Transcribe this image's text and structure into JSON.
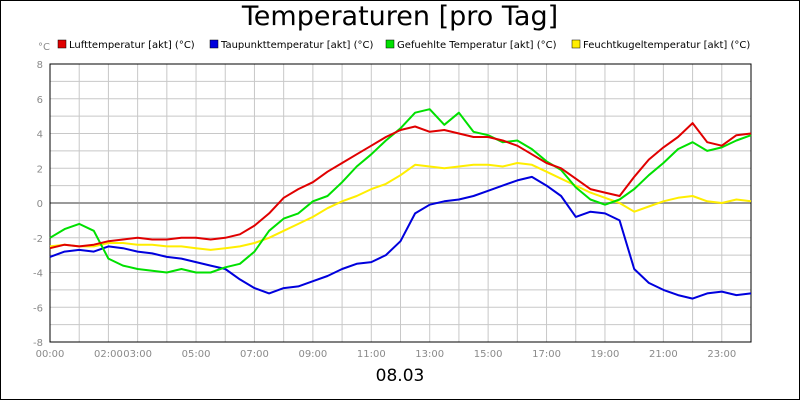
{
  "chart_data": {
    "type": "line",
    "title": "Temperaturen [pro Tag]",
    "date_label": "08.03",
    "y_unit": "°C",
    "ylim": [
      -8,
      8
    ],
    "y_ticks": [
      8,
      6,
      4,
      2,
      0,
      -2,
      -4,
      -6,
      -8
    ],
    "x_range_hours": [
      0,
      24
    ],
    "x_ticks": [
      {
        "hour": 0,
        "label": "00:00"
      },
      {
        "hour": 2,
        "label": "02:00"
      },
      {
        "hour": 3,
        "label": "03:00"
      },
      {
        "hour": 5,
        "label": "05:00"
      },
      {
        "hour": 7,
        "label": "07:00"
      },
      {
        "hour": 9,
        "label": "09:00"
      },
      {
        "hour": 11,
        "label": "11:00"
      },
      {
        "hour": 13,
        "label": "13:00"
      },
      {
        "hour": 15,
        "label": "15:00"
      },
      {
        "hour": 17,
        "label": "17:00"
      },
      {
        "hour": 19,
        "label": "19:00"
      },
      {
        "hour": 21,
        "label": "21:00"
      },
      {
        "hour": 23,
        "label": "23:00"
      }
    ],
    "grid": true,
    "legend_position": "top",
    "series": [
      {
        "name": "Lufttemperatur [akt] (°C)",
        "color": "#e00000",
        "x": [
          0,
          0.5,
          1,
          1.5,
          2,
          2.5,
          3,
          3.5,
          4,
          4.5,
          5,
          5.5,
          6,
          6.5,
          7,
          7.5,
          8,
          8.5,
          9,
          9.5,
          10,
          10.5,
          11,
          11.5,
          12,
          12.5,
          13,
          13.5,
          14,
          14.5,
          15,
          15.5,
          16,
          16.5,
          17,
          17.5,
          18,
          18.5,
          19,
          19.5,
          20,
          20.5,
          21,
          21.5,
          22,
          22.5,
          23,
          23.5,
          24
        ],
        "y": [
          -2.6,
          -2.4,
          -2.5,
          -2.4,
          -2.2,
          -2.1,
          -2.0,
          -2.1,
          -2.1,
          -2.0,
          -2.0,
          -2.1,
          -2.0,
          -1.8,
          -1.3,
          -0.6,
          0.3,
          0.8,
          1.2,
          1.8,
          2.3,
          2.8,
          3.3,
          3.8,
          4.2,
          4.4,
          4.1,
          4.2,
          4.0,
          3.8,
          3.8,
          3.6,
          3.3,
          2.8,
          2.3,
          2.0,
          1.4,
          0.8,
          0.6,
          0.4,
          1.5,
          2.5,
          3.2,
          3.8,
          4.6,
          3.5,
          3.3,
          3.9,
          4.0
        ]
      },
      {
        "name": "Taupunkttemperatur [akt] (°C)",
        "color": "#0000dd",
        "x": [
          0,
          0.5,
          1,
          1.5,
          2,
          2.5,
          3,
          3.5,
          4,
          4.5,
          5,
          5.5,
          6,
          6.5,
          7,
          7.5,
          8,
          8.5,
          9,
          9.5,
          10,
          10.5,
          11,
          11.5,
          12,
          12.5,
          13,
          13.5,
          14,
          14.5,
          15,
          15.5,
          16,
          16.5,
          17,
          17.5,
          18,
          18.5,
          19,
          19.5,
          20,
          20.5,
          21,
          21.5,
          22,
          22.5,
          23,
          23.5,
          24
        ],
        "y": [
          -3.1,
          -2.8,
          -2.7,
          -2.8,
          -2.5,
          -2.6,
          -2.8,
          -2.9,
          -3.1,
          -3.2,
          -3.4,
          -3.6,
          -3.8,
          -4.4,
          -4.9,
          -5.2,
          -4.9,
          -4.8,
          -4.5,
          -4.2,
          -3.8,
          -3.5,
          -3.4,
          -3.0,
          -2.2,
          -0.6,
          -0.1,
          0.1,
          0.2,
          0.4,
          0.7,
          1.0,
          1.3,
          1.5,
          1.0,
          0.4,
          -0.8,
          -0.5,
          -0.6,
          -1.0,
          -3.8,
          -4.6,
          -5.0,
          -5.3,
          -5.5,
          -5.2,
          -5.1,
          -5.3,
          -5.2
        ]
      },
      {
        "name": "Gefuehlte Temperatur [akt] (°C)",
        "color": "#00e000",
        "x": [
          0,
          0.5,
          1,
          1.5,
          2,
          2.5,
          3,
          3.5,
          4,
          4.5,
          5,
          5.5,
          6,
          6.5,
          7,
          7.5,
          8,
          8.5,
          9,
          9.5,
          10,
          10.5,
          11,
          11.5,
          12,
          12.5,
          13,
          13.5,
          14,
          14.5,
          15,
          15.5,
          16,
          16.5,
          17,
          17.5,
          18,
          18.5,
          19,
          19.5,
          20,
          20.5,
          21,
          21.5,
          22,
          22.5,
          23,
          23.5,
          24
        ],
        "y": [
          -2.0,
          -1.5,
          -1.2,
          -1.6,
          -3.2,
          -3.6,
          -3.8,
          -3.9,
          -4.0,
          -3.8,
          -4.0,
          -4.0,
          -3.7,
          -3.5,
          -2.8,
          -1.6,
          -0.9,
          -0.6,
          0.1,
          0.4,
          1.2,
          2.1,
          2.8,
          3.6,
          4.3,
          5.2,
          5.4,
          4.5,
          5.2,
          4.1,
          3.9,
          3.5,
          3.6,
          3.1,
          2.4,
          1.9,
          0.9,
          0.2,
          -0.1,
          0.2,
          0.8,
          1.6,
          2.3,
          3.1,
          3.5,
          3.0,
          3.2,
          3.6,
          3.9
        ]
      },
      {
        "name": "Feuchtkugeltemperatur [akt] (°C)",
        "color": "#ffee00",
        "x": [
          0,
          0.5,
          1,
          1.5,
          2,
          2.5,
          3,
          3.5,
          4,
          4.5,
          5,
          5.5,
          6,
          6.5,
          7,
          7.5,
          8,
          8.5,
          9,
          9.5,
          10,
          10.5,
          11,
          11.5,
          12,
          12.5,
          13,
          13.5,
          14,
          14.5,
          15,
          15.5,
          16,
          16.5,
          17,
          17.5,
          18,
          18.5,
          19,
          19.5,
          20,
          20.5,
          21,
          21.5,
          22,
          22.5,
          23,
          23.5,
          24
        ],
        "y": [
          -2.5,
          -2.4,
          -2.5,
          -2.5,
          -2.3,
          -2.3,
          -2.4,
          -2.4,
          -2.5,
          -2.5,
          -2.6,
          -2.7,
          -2.6,
          -2.5,
          -2.3,
          -2.0,
          -1.6,
          -1.2,
          -0.8,
          -0.3,
          0.1,
          0.4,
          0.8,
          1.1,
          1.6,
          2.2,
          2.1,
          2.0,
          2.1,
          2.2,
          2.2,
          2.1,
          2.3,
          2.2,
          1.8,
          1.4,
          1.0,
          0.6,
          0.3,
          0.0,
          -0.5,
          -0.2,
          0.1,
          0.3,
          0.4,
          0.1,
          0.0,
          0.2,
          0.1
        ]
      }
    ]
  }
}
